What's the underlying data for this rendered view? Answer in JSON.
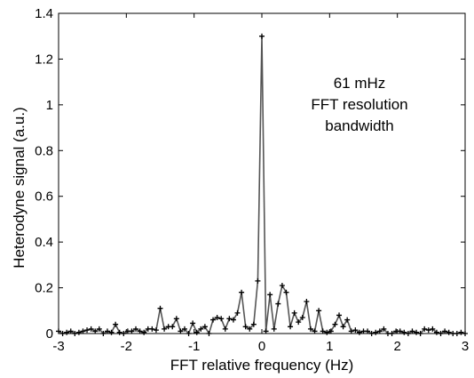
{
  "chart_data": {
    "type": "line",
    "title": "",
    "xlabel": "FFT relative frequency (Hz)",
    "ylabel": "Heterodyne signal (a.u.)",
    "xlim": [
      -3,
      3
    ],
    "ylim": [
      0,
      1.4
    ],
    "x_ticks": [
      -3,
      -2,
      -1,
      0,
      1,
      2,
      3
    ],
    "x_tick_labels": [
      "-3",
      "-2",
      "-1",
      "0",
      "1",
      "2",
      "3"
    ],
    "y_ticks": [
      0,
      0.2,
      0.4,
      0.6,
      0.8,
      1.0,
      1.2,
      1.4
    ],
    "y_tick_labels": [
      "0",
      "0.2",
      "0.4",
      "0.6",
      "0.8",
      "1",
      "1.2",
      "1.4"
    ],
    "grid": false,
    "marker": "plus",
    "line_color": "#555555",
    "marker_color": "#000000",
    "annotation_lines": [
      "61 mHz",
      "FFT resolution",
      "bandwidth"
    ],
    "series": [
      {
        "x": [
          -3.0,
          -2.94,
          -2.88,
          -2.82,
          -2.76,
          -2.7,
          -2.64,
          -2.58,
          -2.52,
          -2.46,
          -2.4,
          -2.34,
          -2.28,
          -2.22,
          -2.16,
          -2.1,
          -2.04,
          -1.98,
          -1.92,
          -1.86,
          -1.8,
          -1.74,
          -1.68,
          -1.62,
          -1.56,
          -1.5,
          -1.44,
          -1.38,
          -1.32,
          -1.26,
          -1.2,
          -1.14,
          -1.08,
          -1.02,
          -0.96,
          -0.9,
          -0.84,
          -0.78,
          -0.72,
          -0.66,
          -0.6,
          -0.54,
          -0.48,
          -0.42,
          -0.36,
          -0.3,
          -0.24,
          -0.18,
          -0.12,
          -0.06,
          0.0,
          0.06,
          0.12,
          0.18,
          0.24,
          0.3,
          0.36,
          0.42,
          0.48,
          0.54,
          0.6,
          0.66,
          0.72,
          0.78,
          0.84,
          0.9,
          0.96,
          1.02,
          1.08,
          1.14,
          1.2,
          1.26,
          1.32,
          1.38,
          1.44,
          1.5,
          1.56,
          1.62,
          1.68,
          1.74,
          1.8,
          1.86,
          1.92,
          1.98,
          2.04,
          2.1,
          2.16,
          2.22,
          2.28,
          2.34,
          2.4,
          2.46,
          2.52,
          2.58,
          2.64,
          2.7,
          2.76,
          2.82,
          2.88,
          2.94,
          3.0
        ],
        "y": [
          0.01,
          0.0,
          0.005,
          0.01,
          0.0,
          0.005,
          0.01,
          0.015,
          0.02,
          0.01,
          0.02,
          0.0,
          0.01,
          0.005,
          0.04,
          0.005,
          0.0,
          0.01,
          0.01,
          0.02,
          0.01,
          0.005,
          0.02,
          0.02,
          0.015,
          0.11,
          0.02,
          0.03,
          0.03,
          0.065,
          0.01,
          0.02,
          0.0,
          0.045,
          0.005,
          0.02,
          0.03,
          0.0,
          0.06,
          0.07,
          0.065,
          0.02,
          0.065,
          0.06,
          0.09,
          0.18,
          0.03,
          0.02,
          0.04,
          0.23,
          1.3,
          0.01,
          0.17,
          0.02,
          0.13,
          0.21,
          0.18,
          0.03,
          0.09,
          0.05,
          0.07,
          0.14,
          0.02,
          0.01,
          0.1,
          0.01,
          0.005,
          0.01,
          0.04,
          0.08,
          0.03,
          0.06,
          0.01,
          0.015,
          0.005,
          0.01,
          0.01,
          0.0,
          0.005,
          0.01,
          0.02,
          0.0,
          0.0,
          0.01,
          0.01,
          0.005,
          0.0,
          0.01,
          0.005,
          0.0,
          0.02,
          0.015,
          0.02,
          0.005,
          0.0,
          0.01,
          0.005,
          0.0,
          0.0,
          0.005,
          0.0
        ]
      }
    ]
  }
}
